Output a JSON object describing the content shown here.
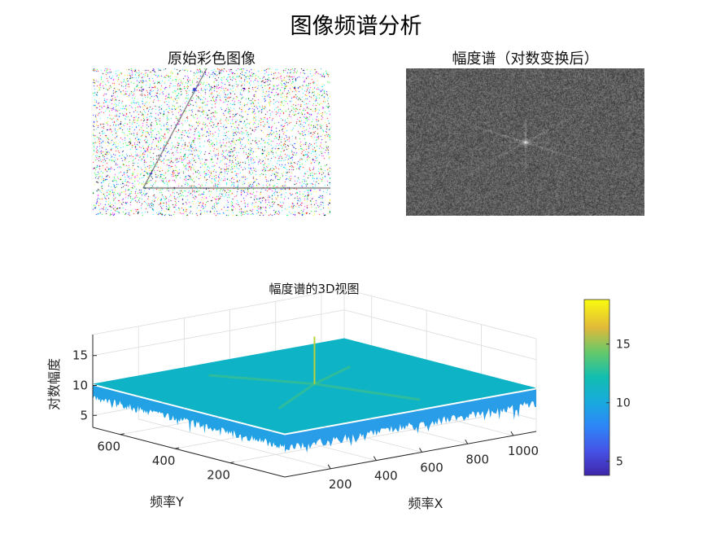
{
  "figure_title": "图像频谱分析",
  "panels": {
    "original": {
      "title": "原始彩色图像"
    },
    "magnitude": {
      "title": "幅度谱（对数变换后）"
    },
    "surface": {
      "title": "幅度谱的3D视图"
    }
  },
  "chart_data": [
    {
      "type": "image",
      "title": "原始彩色图像",
      "description_of_content": "noise"
    },
    {
      "type": "heatmap",
      "title": "幅度谱（对数变换后）",
      "colormap": "gray"
    },
    {
      "type": "surface",
      "title": "幅度谱的3D视图",
      "xlabel": "频率X",
      "ylabel": "频率Y",
      "zlabel": "对数幅度",
      "x_ticks": [
        200,
        400,
        600,
        800,
        1000
      ],
      "y_ticks": [
        200,
        400,
        600
      ],
      "z_ticks": [
        5,
        10,
        15
      ],
      "xlim": [
        0,
        1100
      ],
      "ylim": [
        0,
        700
      ],
      "zlim": [
        3,
        18.5
      ],
      "baseline_level": 10,
      "peak_level": 18.5,
      "colorbar": {
        "ticks": [
          5,
          10,
          15
        ],
        "range": [
          3.8,
          18.8
        ],
        "colormap": "parula"
      }
    }
  ]
}
